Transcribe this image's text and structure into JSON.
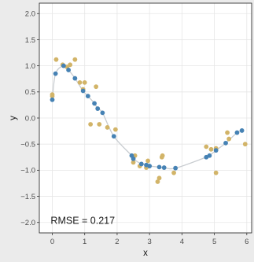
{
  "chart_data": {
    "type": "scatter",
    "xlabel": "x",
    "ylabel": "y",
    "xlim": [
      -0.4,
      6.15
    ],
    "ylim": [
      -2.2,
      2.2
    ],
    "x_ticks": [
      0,
      1,
      2,
      3,
      4,
      5,
      6
    ],
    "y_ticks": [
      -2.0,
      -1.5,
      -1.0,
      -0.5,
      0.0,
      0.5,
      1.0,
      1.5,
      2.0
    ],
    "y_tick_labels": [
      "−2.0",
      "−1.5",
      "−1.0",
      "−0.5",
      "0.0",
      "0.5",
      "1.0",
      "1.5",
      "2.0"
    ],
    "grid": true,
    "annotation": "RMSE = 0.217",
    "colors": {
      "background": "#ffffff",
      "outer_background": "#ebebeb",
      "grid": "#e6e6e6",
      "fitted_points": "#4682b4",
      "observed_points": "#d2b468",
      "curve": "#c8ccd0"
    },
    "series": [
      {
        "role": "observed",
        "x": [
          0.0,
          0.0,
          0.12,
          0.32,
          0.45,
          0.55,
          0.7,
          0.85,
          0.95,
          1.0,
          1.18,
          1.35,
          1.45,
          1.7,
          1.95,
          2.5,
          2.55,
          2.7,
          2.9,
          2.95,
          3.25,
          3.3,
          3.38,
          3.4,
          3.75,
          4.75,
          4.9,
          5.05,
          5.05,
          5.4,
          5.45,
          5.95
        ],
        "y": [
          0.45,
          0.42,
          1.12,
          1.02,
          0.98,
          1.02,
          1.12,
          0.68,
          0.55,
          0.68,
          -0.12,
          0.6,
          -0.12,
          -0.18,
          -0.22,
          -0.85,
          -0.72,
          -0.92,
          -0.95,
          -0.82,
          -1.22,
          -1.15,
          -0.75,
          -0.72,
          -1.05,
          -0.55,
          -0.6,
          -0.58,
          -1.05,
          -0.28,
          -0.4,
          -0.5
        ]
      },
      {
        "role": "fitted",
        "x": [
          0.0,
          0.1,
          0.35,
          0.5,
          0.7,
          0.95,
          1.1,
          1.3,
          1.4,
          1.55,
          1.9,
          2.45,
          2.5,
          2.75,
          2.9,
          3.0,
          3.3,
          3.45,
          3.8,
          4.75,
          4.85,
          5.05,
          5.35,
          5.7,
          5.85
        ],
        "y": [
          0.35,
          0.85,
          1.0,
          0.92,
          0.76,
          0.52,
          0.42,
          0.28,
          0.18,
          0.1,
          -0.35,
          -0.72,
          -0.78,
          -0.88,
          -0.9,
          -0.92,
          -0.94,
          -0.95,
          -0.96,
          -0.75,
          -0.72,
          -0.62,
          -0.48,
          -0.28,
          -0.24
        ]
      }
    ]
  }
}
